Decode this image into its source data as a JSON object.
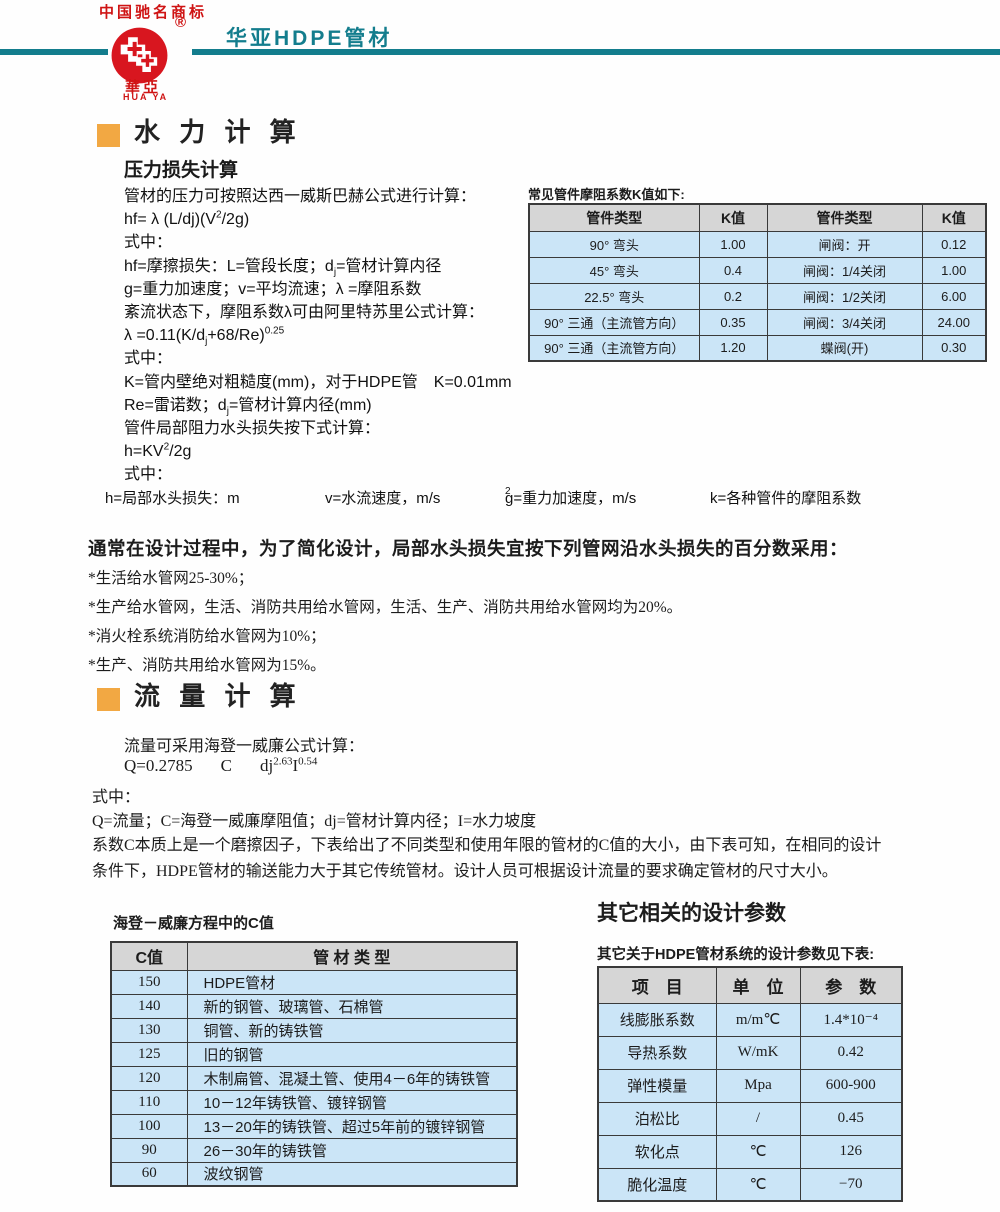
{
  "header": {
    "trademark": "中国驰名商标",
    "registered": "®",
    "brand_cn": "華亞",
    "brand_en": "HUA YA",
    "title": "华亚HDPE管材"
  },
  "hydraulic": {
    "title": "水 力 计 算"
  },
  "pressure": {
    "heading": "压力损失计算",
    "p1": "管材的压力可按照达西一威斯巴赫公式进行计算：",
    "f1a": "hf= λ (L/dj)(V",
    "f1sup": "2",
    "f1b": "/2g)",
    "s1": "式中：",
    "p2a": "hf=摩擦损失：L=管段长度；d",
    "p2sub": "j",
    "p2b": "=管材计算内径",
    "p3": "g=重力加速度；v=平均流速；λ =摩阻系数",
    "p4": "紊流状态下，摩阻系数λ可由阿里特苏里公式计算：",
    "f2a": "λ =0.11(K/d",
    "f2sub": "j",
    "f2b": "+68/Re)",
    "f2sup": "0.25",
    "s2": "式中：",
    "p5": "K=管内壁绝对粗糙度(mm)，对于HDPE管　K=0.01mm",
    "p6a": "Re=雷诺数；d",
    "p6sub": "j",
    "p6b": "=管材计算内径(mm)",
    "p7": "管件局部阻力水头损失按下式计算：",
    "f3a": "h=KV",
    "f3sup": "2",
    "f3b": "/2g",
    "s3": "式中：",
    "w1": "h=局部水头损失：m",
    "w2": "v=水流速度，m/s",
    "w3a": "g=重力加速度，m/s",
    "w3sup": "2",
    "w4": "k=各种管件的摩阻系数"
  },
  "ktable": {
    "caption": "常见管件摩阻系数K值如下:",
    "headers": [
      "管件类型",
      "K值",
      "管件类型",
      "K值"
    ],
    "rows": [
      [
        "90° 弯头",
        "1.00",
        "闸阀：开",
        "0.12"
      ],
      [
        "45° 弯头",
        "0.4",
        "闸阀：1/4关闭",
        "1.00"
      ],
      [
        "22.5° 弯头",
        "0.2",
        "闸阀：1/2关闭",
        "6.00"
      ],
      [
        "90° 三通（主流管方向）",
        "0.35",
        "闸阀：3/4关闭",
        "24.00"
      ],
      [
        "90° 三通（主流管方向）",
        "1.20",
        "蝶阀(开)",
        "0.30"
      ]
    ]
  },
  "design_note": {
    "heading": "通常在设计过程中，为了简化设计，局部水头损失宜按下列管网沿水头损失的百分数采用：",
    "bullets": [
      "*生活给水管网25-30%；",
      "*生产给水管网，生活、消防共用给水管网，生活、生产、消防共用给水管网均为20%。",
      "*消火栓系统消防给水管网为10%；",
      "*生产、消防共用给水管网为15%。"
    ]
  },
  "flow": {
    "title": "流 量 计 算",
    "p1": "流量可采用海登一威廉公式计算：",
    "fa": "Q=0.2785",
    "fb": "C",
    "fc": "dj",
    "fsup1": "2.63",
    "fd": "I",
    "fsup2": "0.54",
    "s": "式中：",
    "p2": "Q=流量；C=海登一威廉摩阻值；dj=管材计算内径；I=水力坡度",
    "p3": "系数C本质上是一个磨擦因子，下表给出了不同类型和使用年限的管材的C值的大小，由下表可知，在相同的设计",
    "p4": "条件下，HDPE管材的输送能力大于其它传统管材。设计人员可根据设计流量的要求确定管材的尺寸大小。"
  },
  "ctable": {
    "caption": "海登－威廉方程中的C值",
    "headers": [
      "C值",
      "管 材 类 型"
    ],
    "rows": [
      [
        "150",
        "HDPE管材"
      ],
      [
        "140",
        "新的钢管、玻璃管、石棉管"
      ],
      [
        "130",
        "铜管、新的铸铁管"
      ],
      [
        "125",
        "旧的钢管"
      ],
      [
        "120",
        "木制扁管、混凝土管、使用4－6年的铸铁管"
      ],
      [
        "110",
        "10－12年铸铁管、镀锌钢管"
      ],
      [
        "100",
        "13－20年的铸铁管、超过5年前的镀锌钢管"
      ],
      [
        "90",
        "26－30年的铸铁管"
      ],
      [
        "60",
        "波纹钢管"
      ]
    ]
  },
  "params": {
    "title": "其它相关的设计参数",
    "caption": "其它关于HDPE管材系统的设计参数见下表:",
    "headers": [
      "项　目",
      "单　位",
      "参　数"
    ],
    "rows": [
      [
        "线膨胀系数",
        "m/m℃",
        "1.4*10⁻⁴"
      ],
      [
        "导热系数",
        "W/mK",
        "0.42"
      ],
      [
        "弹性模量",
        "Mpa",
        "600-900"
      ],
      [
        "泊松比",
        "/",
        "0.45"
      ],
      [
        "软化点",
        "℃",
        "126"
      ],
      [
        "脆化温度",
        "℃",
        "−70"
      ]
    ]
  }
}
